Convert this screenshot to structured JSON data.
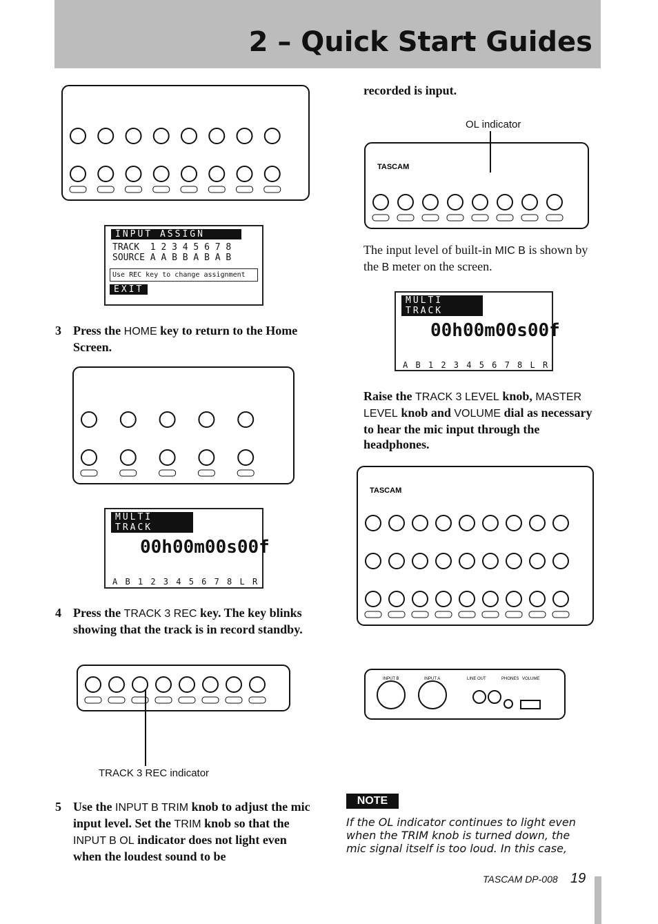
{
  "header": {
    "title": "2 – Quick Start Guides"
  },
  "left": {
    "lcd_assign": {
      "title": "INPUT ASSIGN",
      "track_label": "TRACK",
      "tracks": "1 2 3 4  5 6 7 8",
      "source_label": "SOURCE",
      "sources": "A A B B  A B A B",
      "hint": "Use REC key to change assignment",
      "exit": "EXIT"
    },
    "step3": {
      "number": "3",
      "segments": [
        "Press the ",
        "HOME",
        " key to return to the Home Screen."
      ]
    },
    "lcd_multi": {
      "title": "MULTI TRACK",
      "time": "00h00m00s00f",
      "meters": "A B 1 2 3 4 5 6 7 8 L R"
    },
    "step4": {
      "number": "4",
      "segments": [
        "Press the ",
        "TRACK 3 REC",
        " key. The key blinks showing that the track is in record standby."
      ]
    },
    "callout": "TRACK 3 REC indicator",
    "step5": {
      "number": "5",
      "segments": [
        "Use the ",
        "INPUT B TRIM",
        " knob to adjust the mic input level. Set the ",
        "TRIM",
        " knob so that the ",
        "INPUT B OL",
        " indicator does not light even when the loudest sound to be"
      ]
    }
  },
  "right": {
    "continuation": "recorded is input.",
    "ol_callout": "OL indicator",
    "brand": "TASCAM",
    "para1": {
      "segments": [
        "The input level of built-in ",
        "MIC B",
        " is shown by the ",
        "B",
        " meter on the screen."
      ]
    },
    "lcd_multi": {
      "title": "MULTI TRACK",
      "time": "00h00m00s00f",
      "meters": "A B 1 2 3 4 5 6 7 8 L R"
    },
    "para2": {
      "segments": [
        "Raise the ",
        "TRACK 3 LEVEL",
        " knob, ",
        "MASTER LEVEL",
        " knob and ",
        "VOLUME",
        " dial as necessary to hear the mic input through the headphones."
      ]
    },
    "front_labels": [
      "INPUT B",
      "INPUT A",
      "LINE OUT",
      "PHONES",
      "VOLUME"
    ],
    "note_label": "NOTE",
    "note_text": "If the OL indicator continues to light even when the TRIM knob is turned down, the mic signal itself is too loud. In this case,"
  },
  "footer": {
    "model": "TASCAM  DP-008",
    "page": "19"
  }
}
